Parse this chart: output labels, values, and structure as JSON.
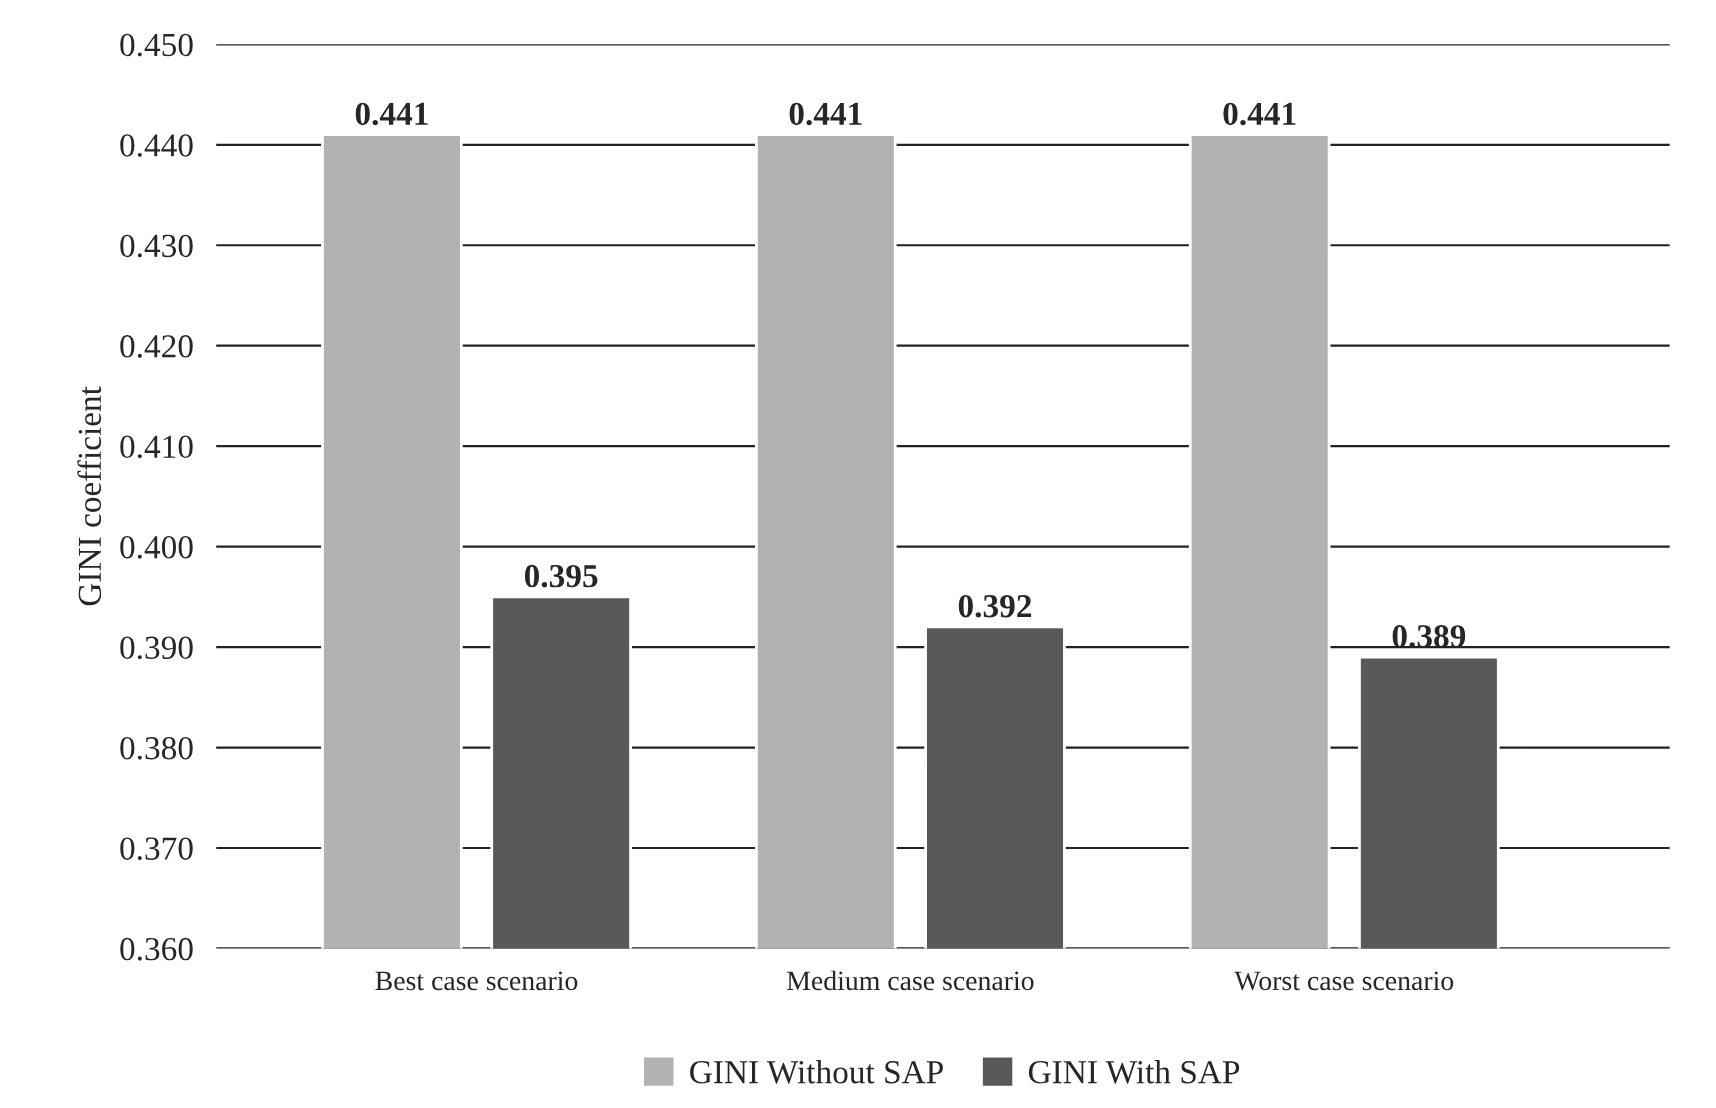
{
  "chart_data": {
    "type": "bar",
    "ylabel": "GINI coefficient",
    "categories": [
      "Best case scenario",
      "Medium case scenario",
      "Worst case scenario"
    ],
    "series": [
      {
        "name": "GINI Without SAP",
        "color": "#b2b2b3",
        "values": [
          0.441,
          0.441,
          0.441
        ]
      },
      {
        "name": "GINI With SAP",
        "color": "#58595b",
        "values": [
          0.395,
          0.392,
          0.389
        ]
      }
    ],
    "ylim": [
      0.36,
      0.45
    ],
    "yticks": [
      {
        "value": 0.36,
        "label": "0.360"
      },
      {
        "value": 0.37,
        "label": "0.370"
      },
      {
        "value": 0.38,
        "label": "0.380"
      },
      {
        "value": 0.39,
        "label": "0.390"
      },
      {
        "value": 0.4,
        "label": "0.400"
      },
      {
        "value": 0.41,
        "label": "0.410"
      },
      {
        "value": 0.42,
        "label": "0.420"
      },
      {
        "value": 0.43,
        "label": "0.430"
      },
      {
        "value": 0.44,
        "label": "0.440"
      },
      {
        "value": 0.45,
        "label": "0.450"
      }
    ],
    "grid": "y",
    "legend": "bottom",
    "data_labels": true
  }
}
